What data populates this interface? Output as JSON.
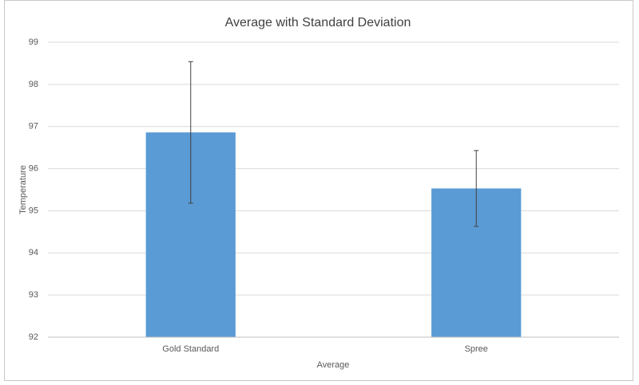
{
  "chart_data": {
    "type": "bar",
    "title": "Average with Standard Deviation",
    "x_label": "Average",
    "y_label": "Temperature",
    "categories": [
      "Gold Standard",
      "Spree"
    ],
    "values": [
      96.86,
      95.53
    ],
    "errors": [
      1.68,
      0.9
    ],
    "color": "#5b9bd5",
    "ylim": [
      92,
      99
    ],
    "yticks": [
      92,
      93,
      94,
      95,
      96,
      97,
      98,
      99
    ],
    "grid": true
  }
}
